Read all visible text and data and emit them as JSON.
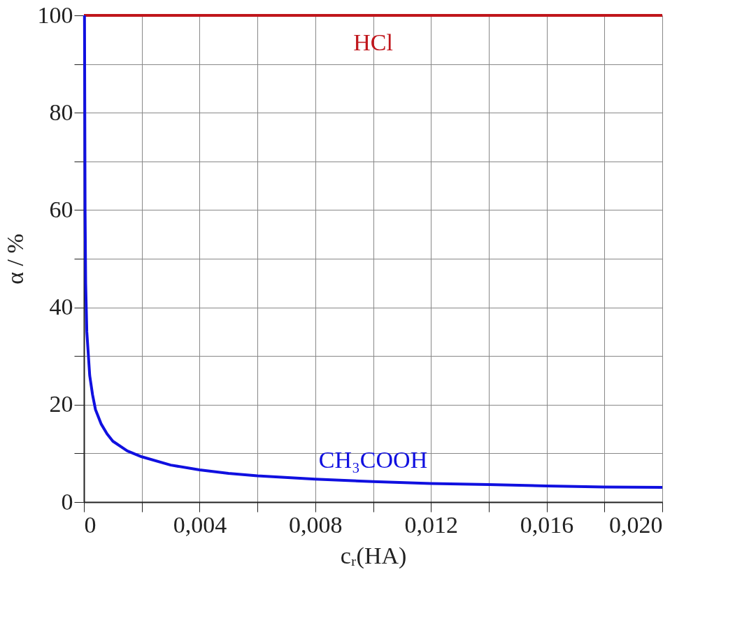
{
  "chart_data": {
    "type": "line",
    "xlabel": "cᵣ(HA)",
    "ylabel": "α / %",
    "xlim": [
      0,
      0.02
    ],
    "ylim": [
      0,
      100
    ],
    "xticks": [
      0,
      {
        "value": 0.002,
        "label": null
      },
      {
        "value": 0.004,
        "label": "0,004"
      },
      {
        "value": 0.006,
        "label": null
      },
      {
        "value": 0.008,
        "label": "0,008"
      },
      {
        "value": 0.01,
        "label": null
      },
      {
        "value": 0.012,
        "label": "0,012"
      },
      {
        "value": 0.014,
        "label": null
      },
      {
        "value": 0.016,
        "label": "0,016"
      },
      {
        "value": 0.018,
        "label": null
      },
      {
        "value": 0.02,
        "label": "0,020"
      }
    ],
    "yticks": [
      0,
      {
        "value": 10,
        "label": null
      },
      20,
      {
        "value": 30,
        "label": null
      },
      40,
      {
        "value": 50,
        "label": null
      },
      60,
      {
        "value": 70,
        "label": null
      },
      80,
      {
        "value": 90,
        "label": null
      },
      100
    ],
    "grid": true,
    "legend": false,
    "marker": "none",
    "line_style": "solid",
    "series": [
      {
        "name": "HCl",
        "color": "#c0161c",
        "x": [
          0,
          0.02
        ],
        "values": [
          100,
          100
        ]
      },
      {
        "name": "CH₃COOH",
        "color": "#1010e0",
        "x": [
          2e-05,
          4e-05,
          6e-05,
          0.0001,
          0.0002,
          0.0003,
          0.0004,
          0.0006,
          0.0008,
          0.001,
          0.0015,
          0.002,
          0.003,
          0.004,
          0.005,
          0.006,
          0.008,
          0.01,
          0.012,
          0.014,
          0.016,
          0.018,
          0.02
        ],
        "values": [
          100,
          60,
          45,
          35,
          26,
          22,
          19,
          16,
          14,
          12.5,
          10.5,
          9.3,
          7.6,
          6.6,
          5.9,
          5.4,
          4.7,
          4.2,
          3.8,
          3.6,
          3.3,
          3.1,
          3.0
        ]
      }
    ]
  }
}
